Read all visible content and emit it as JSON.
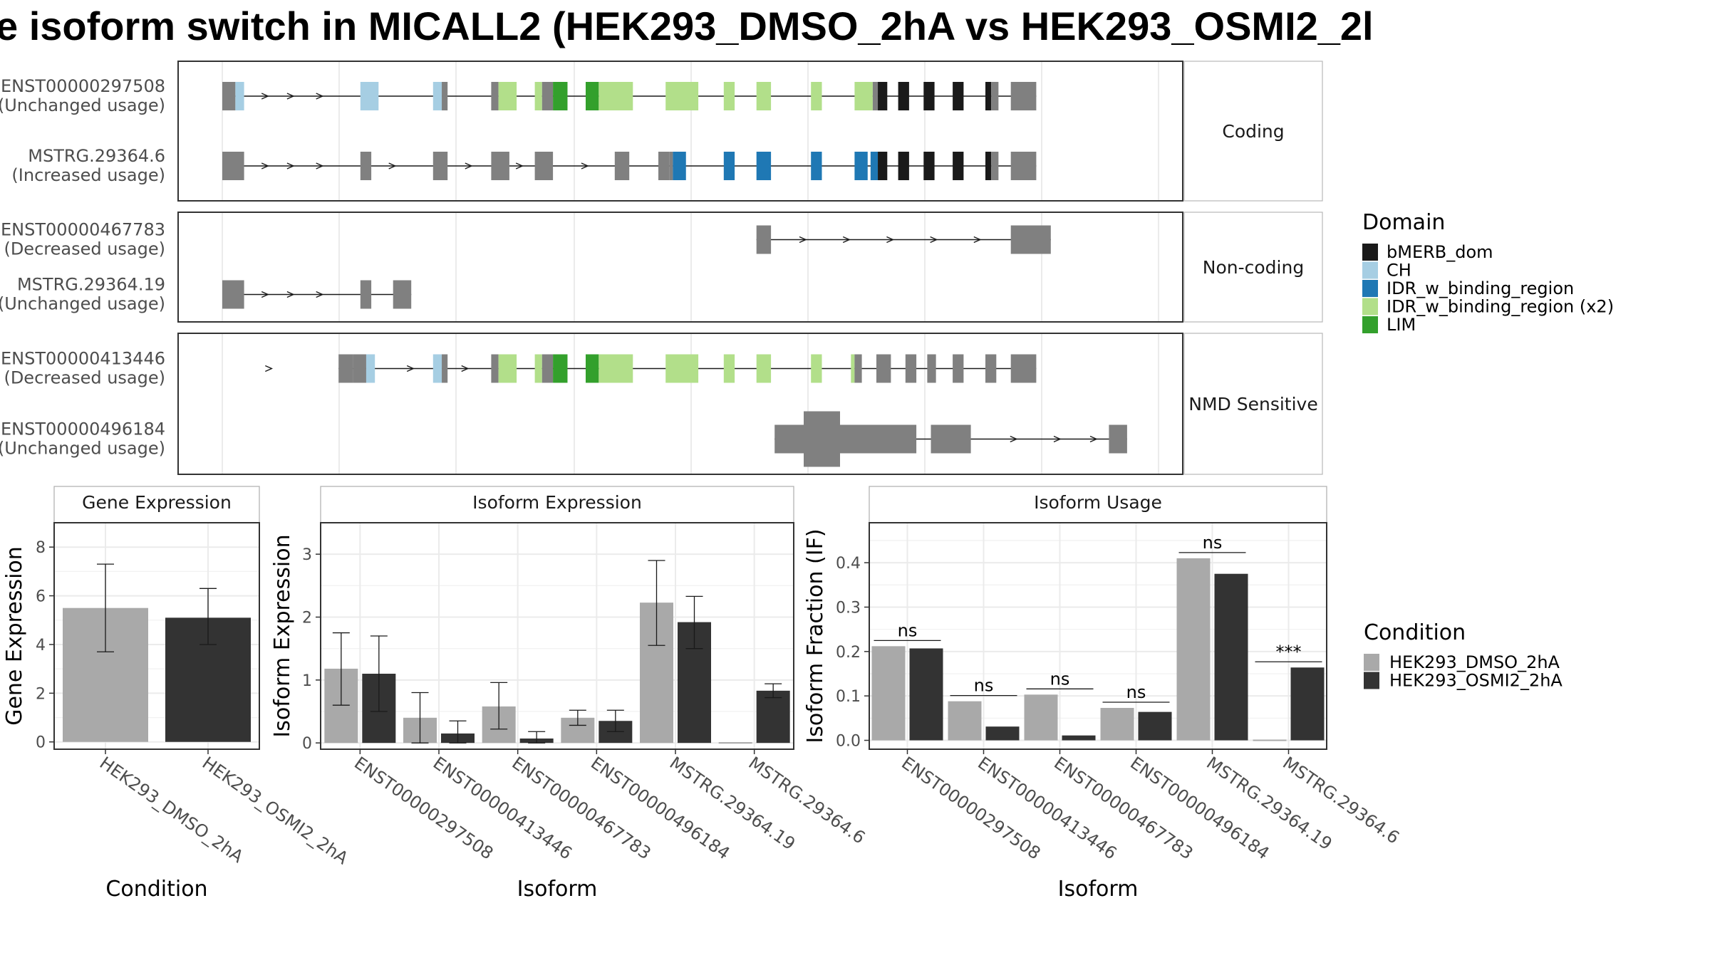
{
  "title": "e isoform switch in MICALL2 (HEK293_DMSO_2hA vs HEK293_OSMI2_2l",
  "colors": {
    "noncoding": "#808080",
    "bMERB_dom": "#1a1a1a",
    "CH": "#a6cee3",
    "IDR_w_binding_region": "#1f78b4",
    "IDR_w_binding_region_x2": "#b2df8a",
    "LIM": "#33a02c",
    "cond1": "#a9a9a9",
    "cond2": "#333333",
    "grid": "#ebebeb",
    "strip": "#ffffff"
  },
  "domain_legend": {
    "title": "Domain",
    "items": [
      {
        "label": "bMERB_dom",
        "color": "#1a1a1a"
      },
      {
        "label": "CH",
        "color": "#a6cee3"
      },
      {
        "label": "IDR_w_binding_region",
        "color": "#1f78b4"
      },
      {
        "label": "IDR_w_binding_region (x2)",
        "color": "#b2df8a"
      },
      {
        "label": "LIM",
        "color": "#33a02c"
      }
    ]
  },
  "condition_legend": {
    "title": "Condition",
    "items": [
      {
        "label": "HEK293_DMSO_2hA",
        "color": "#a9a9a9"
      },
      {
        "label": "HEK293_OSMI2_2hA",
        "color": "#333333"
      }
    ]
  },
  "transcript_panels": [
    {
      "label": "Coding",
      "isoforms": [
        {
          "id": "ENST00000297508",
          "usage": "(Unchanged usage)",
          "segments": [
            {
              "s": 0,
              "e": 1.8,
              "t": "u"
            },
            {
              "s": 1.8,
              "e": 3.0,
              "t": "CH"
            },
            {
              "s": 19,
              "e": 21.5,
              "t": "CH"
            },
            {
              "s": 29,
              "e": 30.2,
              "t": "CH"
            },
            {
              "s": 30.2,
              "e": 31,
              "t": "u"
            },
            {
              "s": 37,
              "e": 38,
              "t": "u"
            },
            {
              "s": 38,
              "e": 40.5,
              "t": "X2"
            },
            {
              "s": 43,
              "e": 44,
              "t": "X2"
            },
            {
              "s": 44,
              "e": 45.5,
              "t": "u"
            },
            {
              "s": 45.5,
              "e": 47.5,
              "t": "LIM"
            },
            {
              "s": 50,
              "e": 51.8,
              "t": "LIM"
            },
            {
              "s": 51.8,
              "e": 56.5,
              "t": "X2"
            },
            {
              "s": 61,
              "e": 65.5,
              "t": "X2"
            },
            {
              "s": 69,
              "e": 70.5,
              "t": "X2"
            },
            {
              "s": 73.5,
              "e": 75.5,
              "t": "X2"
            },
            {
              "s": 81,
              "e": 82.5,
              "t": "X2"
            },
            {
              "s": 87,
              "e": 89.5,
              "t": "X2"
            },
            {
              "s": 89.5,
              "e": 90.2,
              "t": "u"
            },
            {
              "s": 90.2,
              "e": 91.5,
              "t": "bM"
            },
            {
              "s": 93,
              "e": 94.5,
              "t": "bM"
            },
            {
              "s": 96.5,
              "e": 98,
              "t": "bM"
            },
            {
              "s": 100.5,
              "e": 102,
              "t": "bM"
            },
            {
              "s": 105,
              "e": 105.8,
              "t": "bM"
            },
            {
              "s": 105.8,
              "e": 106.8,
              "t": "u"
            },
            {
              "s": 108.5,
              "e": 110,
              "t": "u"
            },
            {
              "s": 110,
              "e": 112,
              "t": "u",
              "h": "thin"
            }
          ],
          "arrows": [
            6,
            9.5,
            13.5
          ]
        },
        {
          "id": "MSTRG.29364.6",
          "usage": "(Increased usage)",
          "segments": [
            {
              "s": 0,
              "e": 3,
              "t": "u"
            },
            {
              "s": 19,
              "e": 20.5,
              "t": "u"
            },
            {
              "s": 29,
              "e": 31,
              "t": "u"
            },
            {
              "s": 37,
              "e": 39.5,
              "t": "u"
            },
            {
              "s": 43,
              "e": 45.5,
              "t": "u"
            },
            {
              "s": 54,
              "e": 56,
              "t": "u"
            },
            {
              "s": 60,
              "e": 61.5,
              "t": "u"
            },
            {
              "s": 61.5,
              "e": 62,
              "t": "u"
            },
            {
              "s": 62,
              "e": 63.8,
              "t": "IDR"
            },
            {
              "s": 69,
              "e": 70.5,
              "t": "IDR"
            },
            {
              "s": 73.5,
              "e": 75.5,
              "t": "IDR"
            },
            {
              "s": 81,
              "e": 82.5,
              "t": "IDR"
            },
            {
              "s": 87,
              "e": 88.8,
              "t": "IDR"
            },
            {
              "s": 89.2,
              "e": 90.2,
              "t": "IDR"
            },
            {
              "s": 90.2,
              "e": 91.5,
              "t": "bM"
            },
            {
              "s": 93,
              "e": 94.5,
              "t": "bM"
            },
            {
              "s": 96.5,
              "e": 98,
              "t": "bM"
            },
            {
              "s": 100.5,
              "e": 102,
              "t": "bM"
            },
            {
              "s": 105,
              "e": 105.8,
              "t": "bM"
            },
            {
              "s": 105.8,
              "e": 106.8,
              "t": "u"
            },
            {
              "s": 108.5,
              "e": 110,
              "t": "u"
            },
            {
              "s": 110,
              "e": 112,
              "t": "u",
              "h": "thin"
            }
          ],
          "arrows": [
            6,
            9.5,
            13.5,
            23.5,
            34,
            41,
            50
          ]
        }
      ]
    },
    {
      "label": "Non-coding",
      "isoforms": [
        {
          "id": "ENST00000467783",
          "usage": "(Decreased usage)",
          "segments": [
            {
              "s": 73.5,
              "e": 75.5,
              "t": "u"
            },
            {
              "s": 108.5,
              "e": 114,
              "t": "u"
            }
          ],
          "arrows": [
            80,
            86,
            92,
            98,
            104
          ]
        },
        {
          "id": "MSTRG.29364.19",
          "usage": "(Unchanged usage)",
          "segments": [
            {
              "s": 0,
              "e": 3,
              "t": "u"
            },
            {
              "s": 19,
              "e": 20.5,
              "t": "u"
            },
            {
              "s": 23.5,
              "e": 26,
              "t": "u"
            }
          ],
          "arrows": [
            6,
            9.5,
            13.5
          ]
        }
      ]
    },
    {
      "label": "NMD Sensitive",
      "isoforms": [
        {
          "id": "ENST00000413446",
          "usage": "(Decreased usage)",
          "segments": [
            {
              "s": 16,
              "e": 18,
              "t": "u",
              "h": "thin"
            },
            {
              "s": 18,
              "e": 19.8,
              "t": "u"
            },
            {
              "s": 19.8,
              "e": 21,
              "t": "CH"
            },
            {
              "s": 29,
              "e": 30.2,
              "t": "CH"
            },
            {
              "s": 30.2,
              "e": 31,
              "t": "u"
            },
            {
              "s": 37,
              "e": 38,
              "t": "u"
            },
            {
              "s": 38,
              "e": 40.5,
              "t": "X2"
            },
            {
              "s": 43,
              "e": 44,
              "t": "X2"
            },
            {
              "s": 44,
              "e": 45.5,
              "t": "u"
            },
            {
              "s": 45.5,
              "e": 47.5,
              "t": "LIM"
            },
            {
              "s": 50,
              "e": 51.8,
              "t": "LIM"
            },
            {
              "s": 51.8,
              "e": 56.5,
              "t": "X2"
            },
            {
              "s": 61,
              "e": 65.5,
              "t": "X2"
            },
            {
              "s": 69,
              "e": 70.5,
              "t": "X2"
            },
            {
              "s": 73.5,
              "e": 75.5,
              "t": "X2"
            },
            {
              "s": 81,
              "e": 82.5,
              "t": "X2"
            },
            {
              "s": 86.5,
              "e": 87,
              "t": "X2"
            },
            {
              "s": 87,
              "e": 88,
              "t": "u"
            },
            {
              "s": 90,
              "e": 92,
              "t": "u",
              "h": "thin"
            },
            {
              "s": 94,
              "e": 95.5,
              "t": "u",
              "h": "thin"
            },
            {
              "s": 97,
              "e": 98.2,
              "t": "u",
              "h": "thin"
            },
            {
              "s": 100.5,
              "e": 102,
              "t": "u",
              "h": "thin"
            },
            {
              "s": 105,
              "e": 106.5,
              "t": "u",
              "h": "thin"
            },
            {
              "s": 108.5,
              "e": 112,
              "t": "u",
              "h": "thin"
            }
          ],
          "arrows": [
            6.5,
            26,
            33.5
          ]
        },
        {
          "id": "ENST00000496184",
          "usage": "(Unchanged usage)",
          "segments": [
            {
              "s": 76,
              "e": 80,
              "t": "u",
              "h": "thin"
            },
            {
              "s": 80,
              "e": 85,
              "t": "u",
              "h": "big"
            },
            {
              "s": 85,
              "e": 95.5,
              "t": "u",
              "h": "thin"
            },
            {
              "s": 97.5,
              "e": 103,
              "t": "u",
              "h": "thin"
            },
            {
              "s": 122,
              "e": 124.5,
              "t": "u",
              "h": "thin"
            }
          ],
          "arrows": [
            109,
            115,
            120
          ]
        }
      ]
    }
  ],
  "gene_expression": {
    "strip": "Gene Expression",
    "ylabel": "Gene Expression",
    "xlabel": "Condition",
    "ylim": [
      -0.3,
      9
    ],
    "yticks": [
      0,
      2,
      4,
      6,
      8
    ],
    "categories": [
      "HEK293_DMSO_2hA",
      "HEK293_OSMI2_2hA"
    ],
    "values": [
      5.5,
      5.1
    ],
    "err_low": [
      3.7,
      4.0
    ],
    "err_high": [
      7.3,
      6.3
    ]
  },
  "isoform_expression": {
    "strip": "Isoform Expression",
    "ylabel": "Isoform Expression",
    "xlabel": "Isoform",
    "ylim": [
      -0.1,
      3.5
    ],
    "yticks": [
      0,
      1,
      2,
      3
    ],
    "categories": [
      "ENST00000297508",
      "ENST00000413446",
      "ENST00000467783",
      "ENST00000496184",
      "MSTRG.29364.19",
      "MSTRG.29364.6"
    ],
    "series": [
      {
        "name": "HEK293_DMSO_2hA",
        "values": [
          1.18,
          0.4,
          0.58,
          0.4,
          2.23,
          0.0
        ],
        "err_low": [
          0.6,
          0.0,
          0.22,
          0.28,
          1.55,
          null
        ],
        "err_high": [
          1.75,
          0.8,
          0.96,
          0.52,
          2.9,
          null
        ]
      },
      {
        "name": "HEK293_OSMI2_2hA",
        "values": [
          1.1,
          0.15,
          0.07,
          0.35,
          1.92,
          0.83
        ],
        "err_low": [
          0.5,
          0.0,
          0.0,
          0.18,
          1.5,
          0.72
        ],
        "err_high": [
          1.7,
          0.35,
          0.18,
          0.52,
          2.33,
          0.94
        ]
      }
    ]
  },
  "isoform_usage": {
    "strip": "Isoform Usage",
    "ylabel": "Isoform Fraction (IF)",
    "xlabel": "Isoform",
    "ylim": [
      -0.02,
      0.49
    ],
    "yticks": [
      0.0,
      0.1,
      0.2,
      0.3,
      0.4
    ],
    "ytick_labels": [
      "0.0",
      "0.1",
      "0.2",
      "0.3",
      "0.4"
    ],
    "categories": [
      "ENST00000297508",
      "ENST00000413446",
      "ENST00000467783",
      "ENST00000496184",
      "MSTRG.29364.19",
      "MSTRG.29364.6"
    ],
    "series": [
      {
        "name": "HEK293_DMSO_2hA",
        "values": [
          0.212,
          0.088,
          0.103,
          0.073,
          0.41,
          0.0
        ]
      },
      {
        "name": "HEK293_OSMI2_2hA",
        "values": [
          0.207,
          0.031,
          0.011,
          0.064,
          0.375,
          0.164
        ]
      }
    ],
    "significance": [
      "ns",
      "ns",
      "ns",
      "ns",
      "ns",
      "***"
    ]
  }
}
